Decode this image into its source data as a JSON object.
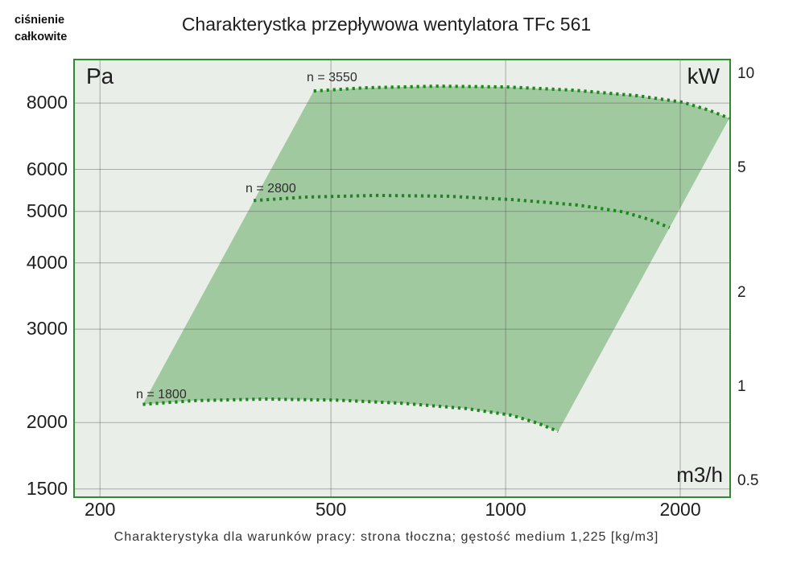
{
  "page": {
    "corner_label_line1": "ciśnienie",
    "corner_label_line2": "całkowite",
    "title": "Charakterystka przepływowa wentylatora TFc 561",
    "caption": "Charakterystyka dla warunków pracy: strona tłoczna; gęstość medium 1,225 [kg/m3]"
  },
  "colors": {
    "plot_background": "#e9eee8",
    "plot_border": "#2f8b2f",
    "envelope_fill": "#a1c9a0",
    "curve_dotted": "#1c871c",
    "grid_line": "rgba(60,60,60,0.38)",
    "text": "#1e1e1e"
  },
  "chart_data": {
    "type": "area",
    "subtype": "fan-performance-envelope",
    "scale": "log-log",
    "grid": true,
    "x_axis": {
      "label": "m3/h",
      "scale": "log",
      "range": [
        181,
        2430
      ],
      "ticks": [
        {
          "v": 200,
          "label": "200"
        },
        {
          "v": 500,
          "label": "500"
        },
        {
          "v": 1000,
          "label": "1000"
        },
        {
          "v": 2000,
          "label": "2000"
        }
      ]
    },
    "y_axis_left": {
      "label": "Pa",
      "scale": "log",
      "range": [
        1452,
        9630
      ],
      "ticks": [
        {
          "v": 8000,
          "label": "8000"
        },
        {
          "v": 6000,
          "label": "6000"
        },
        {
          "v": 5000,
          "label": "5000"
        },
        {
          "v": 4000,
          "label": "4000"
        },
        {
          "v": 3000,
          "label": "3000"
        },
        {
          "v": 2000,
          "label": "2000"
        },
        {
          "v": 1500,
          "label": "1500"
        }
      ]
    },
    "y_axis_right": {
      "label": "kW",
      "scale": "log",
      "range": [
        0.448,
        11.06
      ],
      "ticks": [
        {
          "v": 10,
          "label": "10"
        },
        {
          "v": 5,
          "label": "5"
        },
        {
          "v": 2,
          "label": "2"
        },
        {
          "v": 1,
          "label": "1"
        },
        {
          "v": 0.5,
          "label": "0.5"
        }
      ]
    },
    "series": [
      {
        "name": "n = 3550",
        "style": "dotted",
        "points": [
          [
            467,
            8430
          ],
          [
            572,
            8550
          ],
          [
            762,
            8610
          ],
          [
            1006,
            8580
          ],
          [
            1310,
            8460
          ],
          [
            1690,
            8260
          ],
          [
            2020,
            8030
          ],
          [
            2240,
            7760
          ],
          [
            2430,
            7490
          ]
        ]
      },
      {
        "name": "n = 2800",
        "style": "dotted",
        "points": [
          [
            368,
            5240
          ],
          [
            451,
            5320
          ],
          [
            601,
            5360
          ],
          [
            794,
            5340
          ],
          [
            1033,
            5260
          ],
          [
            1333,
            5140
          ],
          [
            1594,
            4990
          ],
          [
            1767,
            4830
          ],
          [
            1917,
            4660
          ]
        ]
      },
      {
        "name": "n = 1800",
        "style": "dotted",
        "points": [
          [
            237,
            2165
          ],
          [
            290,
            2200
          ],
          [
            386,
            2215
          ],
          [
            510,
            2205
          ],
          [
            664,
            2175
          ],
          [
            857,
            2125
          ],
          [
            1024,
            2065
          ],
          [
            1136,
            1995
          ],
          [
            1232,
            1925
          ]
        ]
      }
    ],
    "envelope": {
      "description": "shaded operating area bounded above by n = 3550 curve, below by n = 1800 curve, with straight connecting edges at minimum and maximum flow"
    }
  }
}
